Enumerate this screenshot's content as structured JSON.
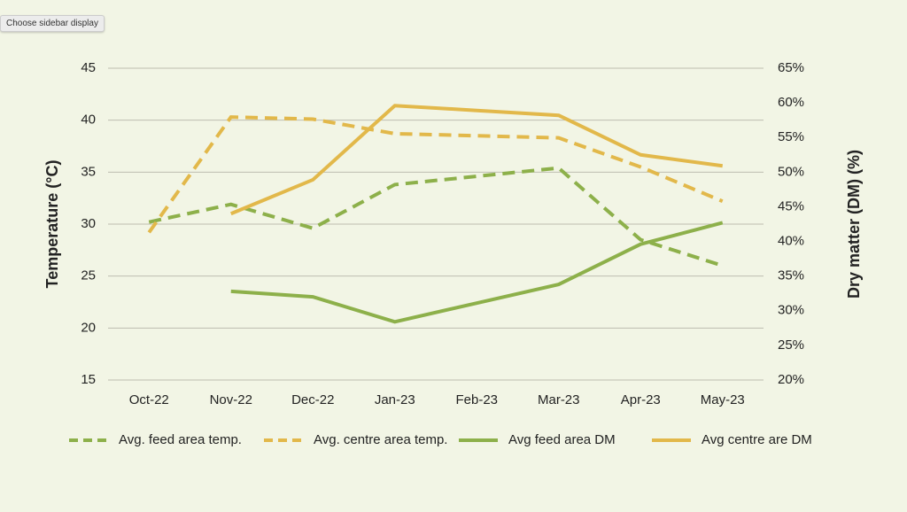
{
  "sidebar_button": "Choose sidebar display",
  "chart_data": {
    "type": "line",
    "y_label": "Temperature (°C)",
    "y2_label": "Dry matter (DM) (%)",
    "categories": [
      "Oct-22",
      "Nov-22",
      "Dec-22",
      "Jan-23",
      "Feb-23",
      "Mar-23",
      "Apr-23",
      "May-23"
    ],
    "ylim": [
      15,
      45
    ],
    "yticks": [
      15,
      20,
      25,
      30,
      35,
      40,
      45
    ],
    "y2lim": [
      20,
      65
    ],
    "y2ticks": [
      {
        "value": 20,
        "label": "20%"
      },
      {
        "value": 25,
        "label": "25%"
      },
      {
        "value": 30,
        "label": "30%"
      },
      {
        "value": 35,
        "label": "35%"
      },
      {
        "value": 40,
        "label": "40%"
      },
      {
        "value": 45,
        "label": "45%"
      },
      {
        "value": 50,
        "label": "50%"
      },
      {
        "value": 55,
        "label": "55%"
      },
      {
        "value": 60,
        "label": "60%"
      },
      {
        "value": 65,
        "label": "65%"
      }
    ],
    "grid": true,
    "legend": "bottom",
    "series": [
      {
        "name": "Avg. feed area temp.",
        "color": "#8db04a",
        "dashed": true,
        "axis": "y",
        "values": [
          30.2,
          31.9,
          29.6,
          33.8,
          34.6,
          35.4,
          28.5,
          26.0
        ]
      },
      {
        "name": "Avg. centre area temp.",
        "color": "#e2b84a",
        "dashed": true,
        "axis": "y",
        "values": [
          29.2,
          40.3,
          40.1,
          38.7,
          38.5,
          38.3,
          35.5,
          32.2
        ]
      },
      {
        "name": "Avg feed area DM",
        "color": "#8db04a",
        "dashed": false,
        "axis": "y2",
        "values": [
          null,
          32.8,
          32.0,
          28.4,
          31.1,
          33.8,
          39.6,
          42.7
        ]
      },
      {
        "name": "Avg centre are DM",
        "color": "#e2b84a",
        "dashed": false,
        "axis": "y2",
        "values": [
          null,
          44.0,
          48.9,
          59.6,
          58.9,
          58.2,
          52.5,
          50.9
        ]
      }
    ]
  }
}
